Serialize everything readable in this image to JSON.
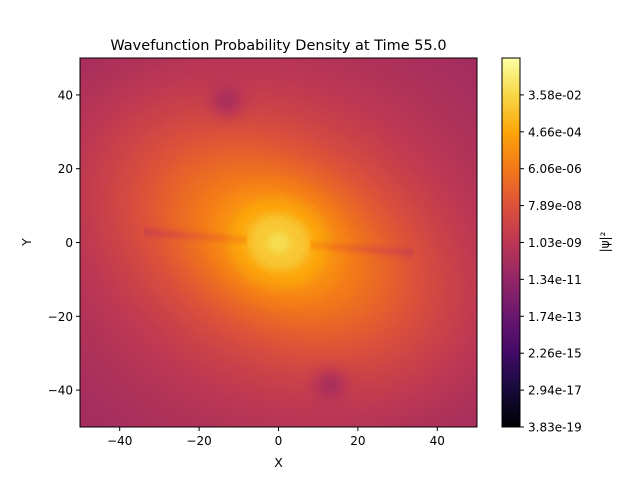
{
  "chart_data": {
    "type": "heatmap",
    "title": "Wavefunction Probability Density at Time 55.0",
    "xlabel": "X",
    "ylabel": "Y",
    "xlim": [
      -50,
      50
    ],
    "ylim": [
      -50,
      50
    ],
    "xticks": [
      -40,
      -20,
      0,
      20,
      40
    ],
    "yticks": [
      -40,
      -20,
      0,
      20,
      40
    ],
    "colormap": "inferno",
    "colorbar": {
      "label": "|ψ|²",
      "scale": "log",
      "range": [
        3.83e-19,
        2.75
      ],
      "ticks": [
        3.83e-19,
        2.94e-17,
        2.26e-15,
        1.74e-13,
        1.34e-11,
        1.03e-09,
        7.89e-08,
        6.06e-06,
        0.000466,
        0.0358
      ],
      "tick_labels": [
        "3.83e-19",
        "2.94e-17",
        "2.26e-15",
        "1.74e-13",
        "1.34e-11",
        "1.03e-09",
        "7.89e-08",
        "6.06e-06",
        "4.66e-04",
        "3.58e-02"
      ]
    },
    "grid": false,
    "description_of_field": {
      "peak_value": 0.04,
      "peak_location": [
        0,
        0
      ],
      "background_value": 1e-11,
      "lobe_angle_deg": -33,
      "low_density_spots": [
        [
          -13,
          38
        ],
        [
          13,
          -38
        ]
      ]
    }
  }
}
